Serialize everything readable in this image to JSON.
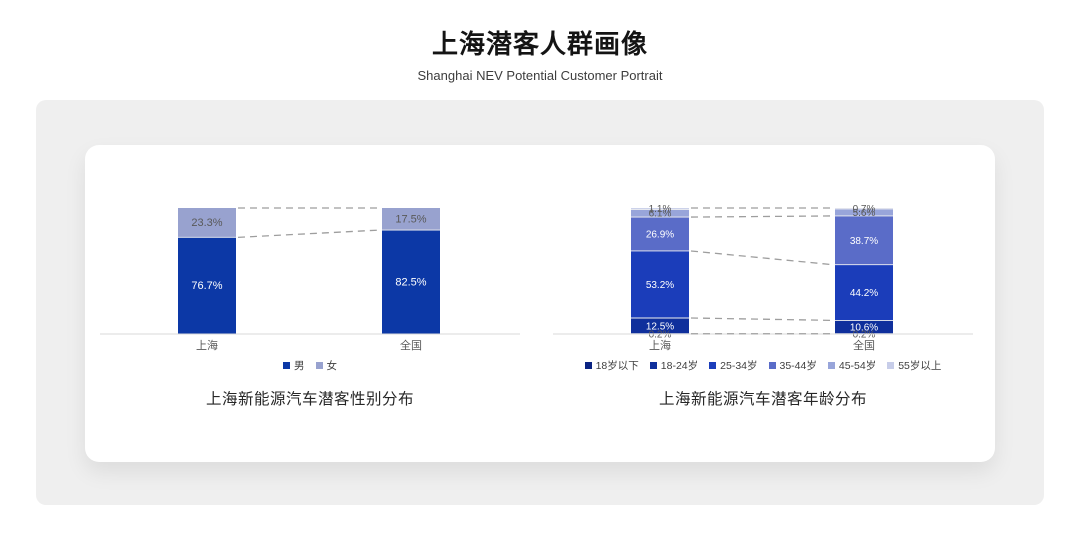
{
  "page": {
    "title": "上海潜客人群画像",
    "subtitle": "Shanghai NEV Potential Customer Portrait"
  },
  "colors": {
    "panel_bg": "#efefef",
    "card_bg": "#ffffff",
    "axis_line": "#d9d9d9",
    "connector_dash": "#9e9e9e",
    "segment_divider": "#f2f2f2",
    "label_dark": "#595959",
    "label_light": "#ffffff",
    "category_label": "#595959"
  },
  "chart_data": [
    {
      "type": "bar",
      "stacked": true,
      "title": "上海新能源汽车潜客性别分布",
      "categories": [
        "上海",
        "全国"
      ],
      "series": [
        {
          "name": "男",
          "color": "#0c38a6",
          "label_color": "#ffffff",
          "values": [
            76.7,
            82.5
          ]
        },
        {
          "name": "女",
          "color": "#98a2cf",
          "label_color": "#595959",
          "values": [
            23.3,
            17.5
          ]
        }
      ],
      "value_suffix": "%",
      "ylim": [
        0,
        100
      ],
      "gridlines": false,
      "legend_position": "bottom",
      "connectors": true
    },
    {
      "type": "bar",
      "stacked": true,
      "title": "上海新能源汽车潜客年龄分布",
      "categories": [
        "上海",
        "全国"
      ],
      "series": [
        {
          "name": "18岁以下",
          "color": "#0a2382",
          "label_color": "#595959",
          "values": [
            0.2,
            0.2
          ]
        },
        {
          "name": "18-24岁",
          "color": "#0f2f9c",
          "label_color": "#ffffff",
          "values": [
            12.5,
            10.6
          ]
        },
        {
          "name": "25-34岁",
          "color": "#1b3dba",
          "label_color": "#ffffff",
          "values": [
            53.2,
            44.2
          ]
        },
        {
          "name": "35-44岁",
          "color": "#5a6cc8",
          "label_color": "#ffffff",
          "values": [
            26.9,
            38.7
          ]
        },
        {
          "name": "45-54岁",
          "color": "#98a5da",
          "label_color": "#595959",
          "values": [
            6.1,
            5.6
          ]
        },
        {
          "name": "55岁以上",
          "color": "#c7cde9",
          "label_color": "#595959",
          "values": [
            1.1,
            0.7
          ]
        }
      ],
      "value_suffix": "%",
      "ylim": [
        0,
        100
      ],
      "gridlines": false,
      "legend_position": "bottom",
      "connectors": true
    }
  ]
}
